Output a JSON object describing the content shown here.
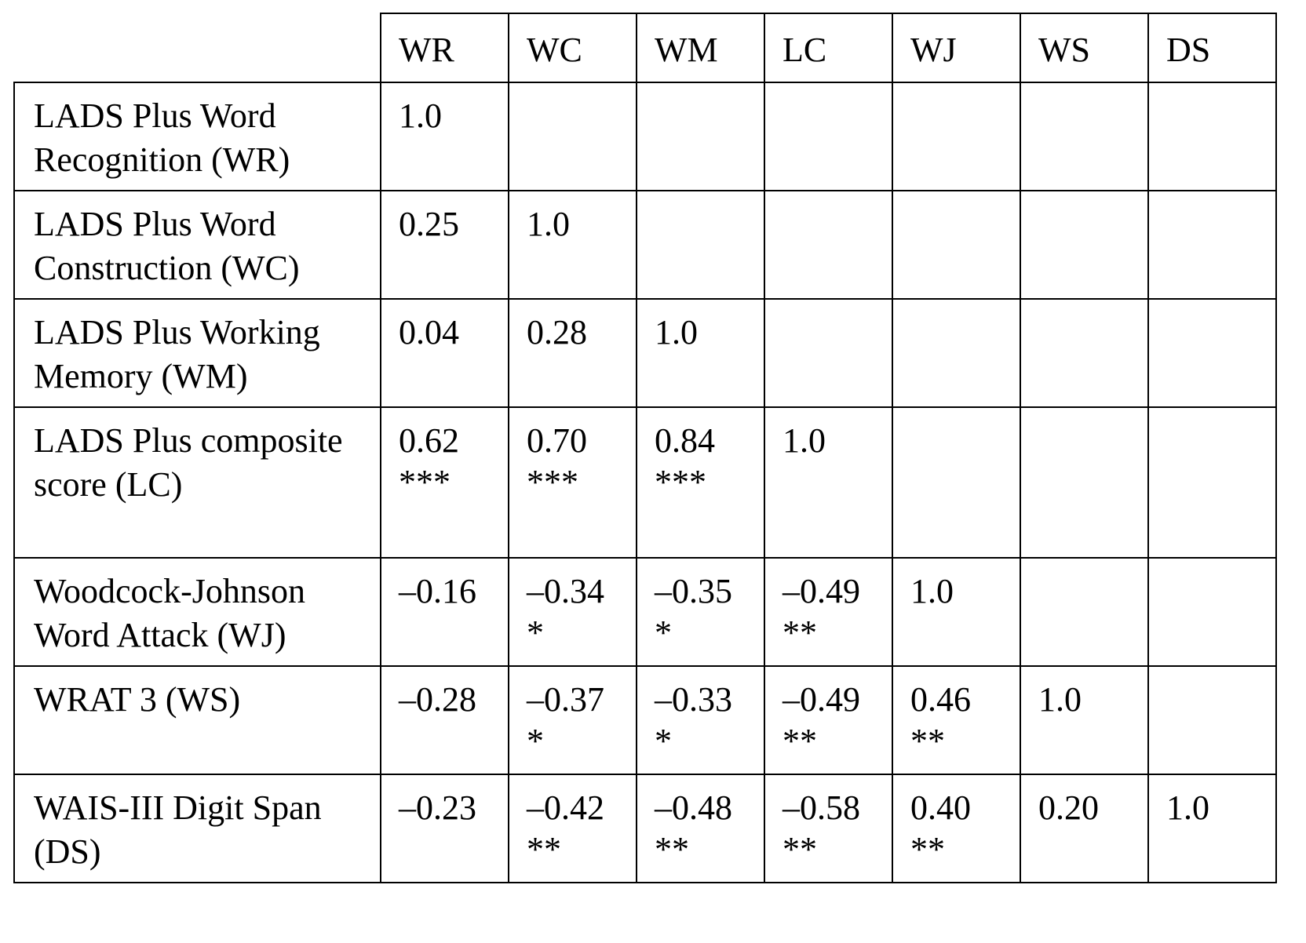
{
  "columns": [
    "WR",
    "WC",
    "WM",
    "LC",
    "WJ",
    "WS",
    "DS"
  ],
  "rows": [
    {
      "label": "LADS Plus Word Recognition (WR)",
      "cells": [
        {
          "value": "1.0",
          "sig": ""
        },
        {
          "value": "",
          "sig": ""
        },
        {
          "value": "",
          "sig": ""
        },
        {
          "value": "",
          "sig": ""
        },
        {
          "value": "",
          "sig": ""
        },
        {
          "value": "",
          "sig": ""
        },
        {
          "value": "",
          "sig": ""
        }
      ]
    },
    {
      "label": "LADS Plus Word Construction (WC)",
      "cells": [
        {
          "value": "0.25",
          "sig": ""
        },
        {
          "value": "1.0",
          "sig": ""
        },
        {
          "value": "",
          "sig": ""
        },
        {
          "value": "",
          "sig": ""
        },
        {
          "value": "",
          "sig": ""
        },
        {
          "value": "",
          "sig": ""
        },
        {
          "value": "",
          "sig": ""
        }
      ]
    },
    {
      "label": "LADS Plus Working Memory (WM)",
      "cells": [
        {
          "value": "0.04",
          "sig": ""
        },
        {
          "value": "0.28",
          "sig": ""
        },
        {
          "value": "1.0",
          "sig": ""
        },
        {
          "value": "",
          "sig": ""
        },
        {
          "value": "",
          "sig": ""
        },
        {
          "value": "",
          "sig": ""
        },
        {
          "value": "",
          "sig": ""
        }
      ]
    },
    {
      "label": "LADS Plus composite score (LC)",
      "cells": [
        {
          "value": "0.62",
          "sig": "***"
        },
        {
          "value": "0.70",
          "sig": "***"
        },
        {
          "value": "0.84",
          "sig": "***"
        },
        {
          "value": "1.0",
          "sig": ""
        },
        {
          "value": "",
          "sig": ""
        },
        {
          "value": "",
          "sig": ""
        },
        {
          "value": "",
          "sig": ""
        }
      ]
    },
    {
      "label": "Woodcock-Johnson Word Attack (WJ)",
      "cells": [
        {
          "value": "–0.16",
          "sig": ""
        },
        {
          "value": "–0.34",
          "sig": "*"
        },
        {
          "value": "–0.35",
          "sig": "*"
        },
        {
          "value": "–0.49",
          "sig": "**"
        },
        {
          "value": "1.0",
          "sig": ""
        },
        {
          "value": "",
          "sig": ""
        },
        {
          "value": "",
          "sig": ""
        }
      ]
    },
    {
      "label": "WRAT 3 (WS)",
      "cells": [
        {
          "value": "–0.28",
          "sig": ""
        },
        {
          "value": "–0.37",
          "sig": "*"
        },
        {
          "value": "–0.33",
          "sig": "*"
        },
        {
          "value": "–0.49",
          "sig": "**"
        },
        {
          "value": "0.46",
          "sig": "**"
        },
        {
          "value": "1.0",
          "sig": ""
        },
        {
          "value": "",
          "sig": ""
        }
      ]
    },
    {
      "label": "WAIS-III Digit Span (DS)",
      "cells": [
        {
          "value": "–0.23",
          "sig": ""
        },
        {
          "value": "–0.42",
          "sig": "**"
        },
        {
          "value": "–0.48",
          "sig": "**"
        },
        {
          "value": "–0.58",
          "sig": "**"
        },
        {
          "value": "0.40",
          "sig": "**"
        },
        {
          "value": "0.20",
          "sig": ""
        },
        {
          "value": "1.0",
          "sig": ""
        }
      ]
    }
  ]
}
